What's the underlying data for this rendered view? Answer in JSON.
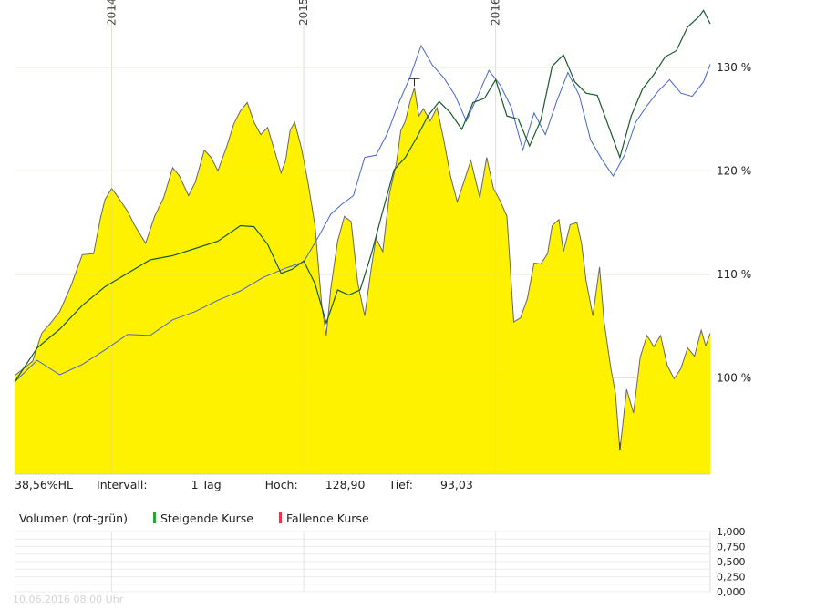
{
  "chart_data": [
    {
      "type": "area",
      "x_ticks": [
        "2014",
        "2015",
        "2016"
      ],
      "y_ticks": [
        "100 %",
        "110 %",
        "120 %",
        "130 %"
      ],
      "ylim": [
        90.7,
        136.5
      ],
      "grid": true,
      "series": [
        {
          "color": "#fff200",
          "points": [
            [
              0.0,
              100.2
            ],
            [
              0.8,
              101.6
            ],
            [
              1.2,
              104.3
            ],
            [
              1.6,
              105.3
            ],
            [
              2.0,
              106.4
            ],
            [
              2.5,
              108.9
            ],
            [
              3.0,
              111.9
            ],
            [
              3.5,
              112.0
            ],
            [
              3.8,
              115.4
            ],
            [
              4.0,
              117.2
            ],
            [
              4.3,
              118.3
            ],
            [
              4.6,
              117.4
            ],
            [
              5.0,
              116.1
            ],
            [
              5.3,
              114.8
            ],
            [
              5.8,
              113.0
            ],
            [
              6.2,
              115.6
            ],
            [
              6.6,
              117.4
            ],
            [
              7.0,
              120.3
            ],
            [
              7.3,
              119.5
            ],
            [
              7.7,
              117.6
            ],
            [
              8.0,
              118.9
            ],
            [
              8.4,
              122.0
            ],
            [
              8.7,
              121.3
            ],
            [
              9.0,
              120.0
            ],
            [
              9.4,
              122.4
            ],
            [
              9.7,
              124.5
            ],
            [
              10.0,
              125.8
            ],
            [
              10.3,
              126.6
            ],
            [
              10.6,
              124.7
            ],
            [
              10.9,
              123.5
            ],
            [
              11.2,
              124.2
            ],
            [
              11.5,
              122.0
            ],
            [
              11.8,
              119.8
            ],
            [
              12.0,
              121.0
            ],
            [
              12.2,
              123.9
            ],
            [
              12.4,
              124.7
            ],
            [
              12.7,
              122.2
            ],
            [
              13.0,
              118.8
            ],
            [
              13.3,
              114.7
            ],
            [
              13.6,
              107.0
            ],
            [
              13.8,
              104.1
            ],
            [
              14.0,
              108.6
            ],
            [
              14.3,
              113.2
            ],
            [
              14.6,
              115.6
            ],
            [
              14.9,
              115.1
            ],
            [
              15.2,
              109.1
            ],
            [
              15.5,
              106.0
            ],
            [
              15.8,
              110.7
            ],
            [
              16.0,
              113.5
            ],
            [
              16.3,
              112.2
            ],
            [
              16.6,
              117.8
            ],
            [
              16.9,
              120.7
            ],
            [
              17.1,
              123.9
            ],
            [
              17.3,
              124.8
            ],
            [
              17.5,
              126.6
            ],
            [
              17.7,
              128.0
            ],
            [
              17.9,
              125.3
            ],
            [
              18.1,
              126.0
            ],
            [
              18.4,
              124.8
            ],
            [
              18.7,
              126.1
            ],
            [
              19.0,
              123.0
            ],
            [
              19.3,
              119.5
            ],
            [
              19.6,
              117.0
            ],
            [
              19.9,
              119.0
            ],
            [
              20.2,
              121.0
            ],
            [
              20.6,
              117.4
            ],
            [
              20.9,
              121.3
            ],
            [
              21.2,
              118.3
            ],
            [
              21.5,
              117.1
            ],
            [
              21.8,
              115.6
            ],
            [
              22.1,
              105.4
            ],
            [
              22.4,
              105.8
            ],
            [
              22.7,
              107.6
            ],
            [
              23.0,
              111.1
            ],
            [
              23.3,
              111.0
            ],
            [
              23.6,
              112.0
            ],
            [
              23.8,
              114.7
            ],
            [
              24.1,
              115.3
            ],
            [
              24.3,
              112.2
            ],
            [
              24.6,
              114.8
            ],
            [
              24.9,
              115.0
            ],
            [
              25.1,
              113.0
            ],
            [
              25.3,
              109.4
            ],
            [
              25.6,
              106.0
            ],
            [
              25.9,
              110.7
            ],
            [
              26.1,
              105.4
            ],
            [
              26.4,
              100.9
            ],
            [
              26.6,
              98.5
            ],
            [
              26.8,
              93.0
            ],
            [
              27.1,
              98.9
            ],
            [
              27.4,
              96.6
            ],
            [
              27.7,
              102.0
            ],
            [
              28.0,
              104.1
            ],
            [
              28.3,
              103.0
            ],
            [
              28.6,
              104.1
            ],
            [
              28.9,
              101.2
            ],
            [
              29.2,
              99.9
            ],
            [
              29.5,
              100.9
            ],
            [
              29.8,
              102.9
            ],
            [
              30.1,
              102.1
            ],
            [
              30.4,
              104.6
            ],
            [
              30.6,
              103.1
            ],
            [
              30.8,
              104.3
            ]
          ]
        },
        {
          "color": "#4466cc",
          "points": [
            [
              0.0,
              99.6
            ],
            [
              1.0,
              101.7
            ],
            [
              2.0,
              100.3
            ],
            [
              3.0,
              101.3
            ],
            [
              4.0,
              102.7
            ],
            [
              5.0,
              104.2
            ],
            [
              6.0,
              104.1
            ],
            [
              7.0,
              105.6
            ],
            [
              8.0,
              106.4
            ],
            [
              9.0,
              107.5
            ],
            [
              10.0,
              108.4
            ],
            [
              11.0,
              109.7
            ],
            [
              12.0,
              110.6
            ],
            [
              12.8,
              111.2
            ],
            [
              13.5,
              113.8
            ],
            [
              14.0,
              115.8
            ],
            [
              14.5,
              116.8
            ],
            [
              15.0,
              117.6
            ],
            [
              15.5,
              121.3
            ],
            [
              16.0,
              121.5
            ],
            [
              16.5,
              123.6
            ],
            [
              17.0,
              126.5
            ],
            [
              17.5,
              129.0
            ],
            [
              18.0,
              132.1
            ],
            [
              18.5,
              130.2
            ],
            [
              19.0,
              129.0
            ],
            [
              19.5,
              127.3
            ],
            [
              20.0,
              124.8
            ],
            [
              20.5,
              127.2
            ],
            [
              21.0,
              129.7
            ],
            [
              21.5,
              128.3
            ],
            [
              22.0,
              126.1
            ],
            [
              22.5,
              122.0
            ],
            [
              23.0,
              125.6
            ],
            [
              23.5,
              123.5
            ],
            [
              24.0,
              126.7
            ],
            [
              24.5,
              129.5
            ],
            [
              25.0,
              127.3
            ],
            [
              25.5,
              123.0
            ],
            [
              26.0,
              121.1
            ],
            [
              26.5,
              119.5
            ],
            [
              27.0,
              121.5
            ],
            [
              27.5,
              124.7
            ],
            [
              28.0,
              126.3
            ],
            [
              28.5,
              127.7
            ],
            [
              29.0,
              128.8
            ],
            [
              29.5,
              127.5
            ],
            [
              30.0,
              127.2
            ],
            [
              30.5,
              128.6
            ],
            [
              30.8,
              130.3
            ]
          ]
        },
        {
          "color": "#1a5a2a",
          "points": [
            [
              0.0,
              99.6
            ],
            [
              1.0,
              102.9
            ],
            [
              2.0,
              104.7
            ],
            [
              3.0,
              107.0
            ],
            [
              4.0,
              108.8
            ],
            [
              5.0,
              110.1
            ],
            [
              6.0,
              111.4
            ],
            [
              7.0,
              111.8
            ],
            [
              8.0,
              112.5
            ],
            [
              9.0,
              113.2
            ],
            [
              10.0,
              114.7
            ],
            [
              10.6,
              114.6
            ],
            [
              11.2,
              112.9
            ],
            [
              11.8,
              110.1
            ],
            [
              12.3,
              110.5
            ],
            [
              12.8,
              111.3
            ],
            [
              13.3,
              109.1
            ],
            [
              13.8,
              105.3
            ],
            [
              14.3,
              108.5
            ],
            [
              14.8,
              108.0
            ],
            [
              15.3,
              108.5
            ],
            [
              15.8,
              112.0
            ],
            [
              16.3,
              116.1
            ],
            [
              16.8,
              120.1
            ],
            [
              17.3,
              121.3
            ],
            [
              17.8,
              123.2
            ],
            [
              18.3,
              125.3
            ],
            [
              18.8,
              126.7
            ],
            [
              19.3,
              125.6
            ],
            [
              19.8,
              124.0
            ],
            [
              20.3,
              126.6
            ],
            [
              20.8,
              127.0
            ],
            [
              21.3,
              128.8
            ],
            [
              21.8,
              125.3
            ],
            [
              22.3,
              125.0
            ],
            [
              22.8,
              122.4
            ],
            [
              23.3,
              124.9
            ],
            [
              23.8,
              130.1
            ],
            [
              24.3,
              131.2
            ],
            [
              24.8,
              128.6
            ],
            [
              25.3,
              127.5
            ],
            [
              25.8,
              127.3
            ],
            [
              26.3,
              124.3
            ],
            [
              26.8,
              121.3
            ],
            [
              27.3,
              125.3
            ],
            [
              27.8,
              127.9
            ],
            [
              28.3,
              129.3
            ],
            [
              28.8,
              131.0
            ],
            [
              29.3,
              131.6
            ],
            [
              29.8,
              133.9
            ],
            [
              30.3,
              134.9
            ],
            [
              30.5,
              135.5
            ],
            [
              30.8,
              134.2
            ]
          ]
        }
      ],
      "markers": [
        {
          "x": 17.7,
          "y": 128.9
        },
        {
          "x": 26.8,
          "y": 93.03
        }
      ]
    },
    {
      "type": "bar",
      "series": [
        {
          "name": "Steigende Kurse",
          "color": "#22aa33",
          "values": []
        },
        {
          "name": "Fallende Kurse",
          "color": "#ee3344",
          "values": []
        }
      ],
      "y_ticks": [
        "1,000",
        "0,750",
        "0,500",
        "0,250",
        "0,000"
      ],
      "ylim": [
        0,
        1
      ]
    }
  ],
  "info": {
    "perf": "38,56%HL",
    "interval_label": "Intervall:",
    "interval_value": "1 Tag",
    "high_label": "Hoch:",
    "high_value": "128,90",
    "low_label": "Tief:",
    "low_value": "93,03"
  },
  "volume_legend": {
    "title": "Volumen (rot-grün)",
    "up_label": "Steigende Kurse",
    "down_label": "Fallende Kurse"
  },
  "footer": "10.06.2016 08:00 Uhr"
}
